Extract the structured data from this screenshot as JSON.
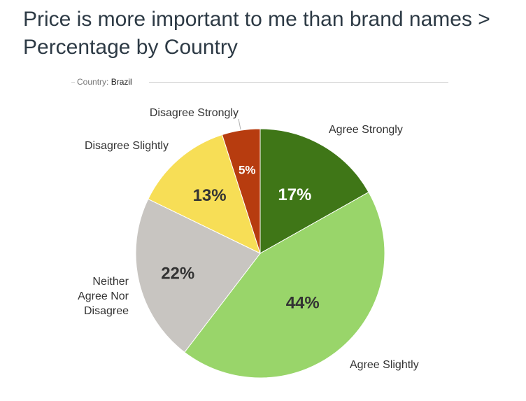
{
  "title": "Price is more important to me than brand names > Percentage by Country",
  "filter": {
    "label": "Country:",
    "value": "Brazil"
  },
  "chart_data": {
    "type": "pie",
    "title": "Price is more important to me than brand names > Percentage by Country",
    "categories": [
      "Agree Strongly",
      "Agree Slightly",
      "Neither Agree Nor Disagree",
      "Disagree Slightly",
      "Disagree Strongly"
    ],
    "values": [
      17,
      44,
      22,
      13,
      5
    ],
    "value_labels": [
      "17%",
      "44%",
      "22%",
      "13%",
      "5%"
    ],
    "unit": "%",
    "colors": [
      "#3f7617",
      "#99d56a",
      "#c8c5c1",
      "#f7de56",
      "#b73c0f"
    ],
    "label_colors": [
      "#ffffff",
      "#333333",
      "#333333",
      "#333333",
      "#ffffff"
    ],
    "start_angle_deg": 0,
    "direction": "clockwise",
    "legend": "none",
    "category_labels_outside": true
  }
}
